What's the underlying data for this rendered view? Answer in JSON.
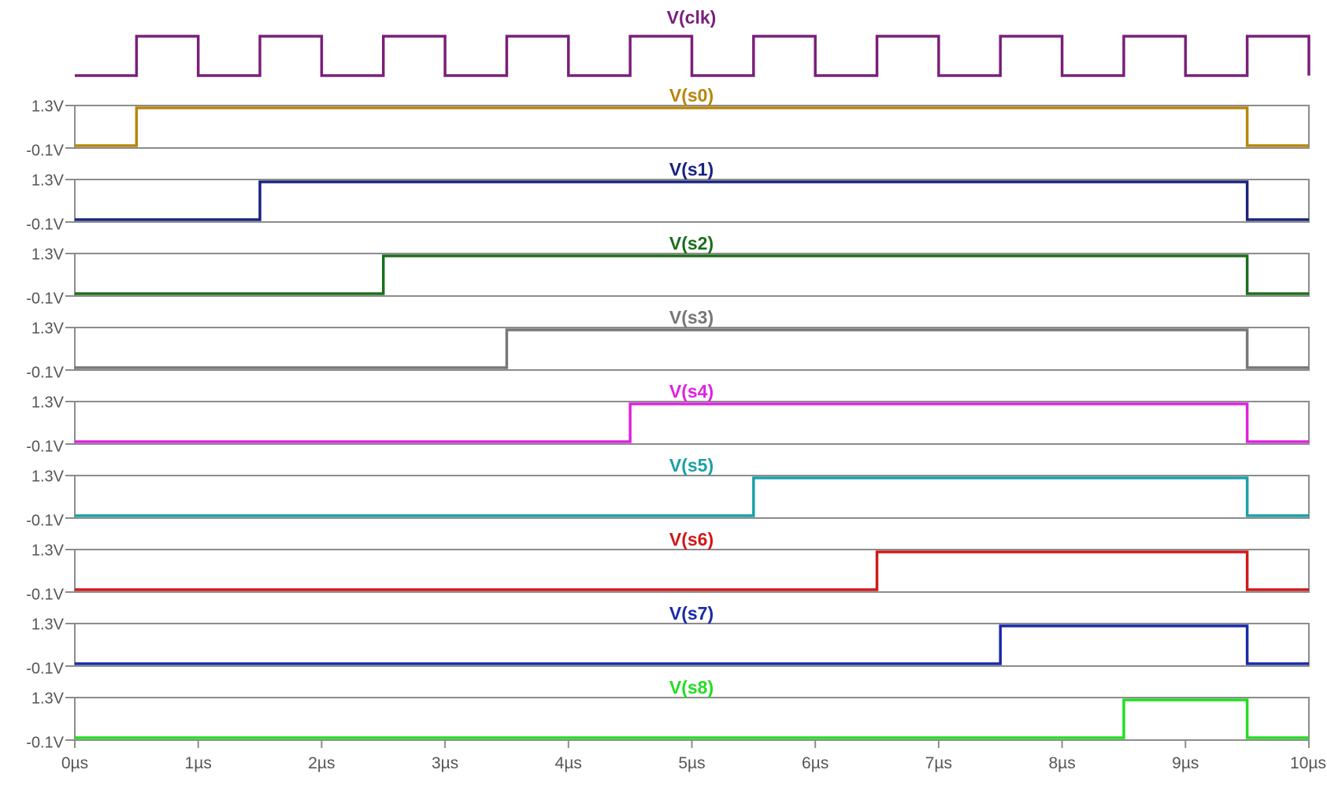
{
  "chart_data": {
    "type": "line",
    "title": "",
    "xlabel": "",
    "ylabel": "",
    "x_unit": "µs",
    "xlim": [
      0,
      10
    ],
    "x_ticks": [
      "0µs",
      "1µs",
      "2µs",
      "3µs",
      "4µs",
      "5µs",
      "6µs",
      "7µs",
      "8µs",
      "9µs",
      "10µs"
    ],
    "y_ticks": [
      "1.3V",
      "-0.1V"
    ],
    "ylim": [
      -0.1,
      1.3
    ],
    "grid": false,
    "clock": {
      "name": "V(clk)",
      "color": "#7a1f7a",
      "period_us": 1,
      "first_rise_us": 0.5,
      "high_us": 0.5
    },
    "series": [
      {
        "name": "V(s0)",
        "color": "#b8860b",
        "rise_us": 0.5,
        "fall_us": 9.5
      },
      {
        "name": "V(s1)",
        "color": "#1a237e",
        "rise_us": 1.5,
        "fall_us": 9.5
      },
      {
        "name": "V(s2)",
        "color": "#1b6e1b",
        "rise_us": 2.5,
        "fall_us": 9.5
      },
      {
        "name": "V(s3)",
        "color": "#777777",
        "rise_us": 3.5,
        "fall_us": 9.5
      },
      {
        "name": "V(s4)",
        "color": "#e020e0",
        "rise_us": 4.5,
        "fall_us": 9.5
      },
      {
        "name": "V(s5)",
        "color": "#1aa0a8",
        "rise_us": 5.5,
        "fall_us": 9.5
      },
      {
        "name": "V(s6)",
        "color": "#d01818",
        "rise_us": 6.5,
        "fall_us": 9.5
      },
      {
        "name": "V(s7)",
        "color": "#1a2aa8",
        "rise_us": 7.5,
        "fall_us": 9.5
      },
      {
        "name": "V(s8)",
        "color": "#22dd22",
        "rise_us": 8.5,
        "fall_us": 9.5
      }
    ]
  }
}
